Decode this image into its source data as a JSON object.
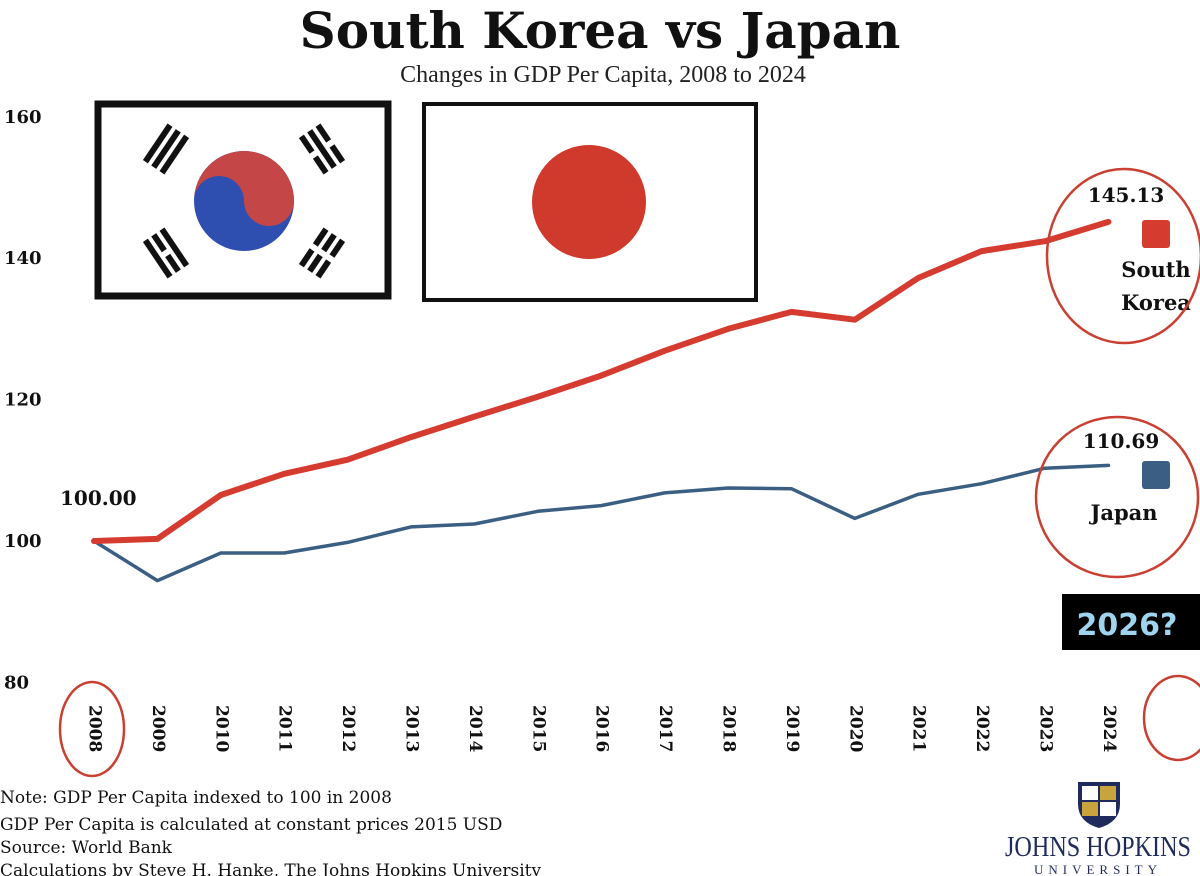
{
  "chart_data": {
    "type": "line",
    "title": "South Korea vs Japan",
    "subtitle": "Changes in GDP Per Capita, 2008 to 2024",
    "x": [
      "2008",
      "2009",
      "2010",
      "2011",
      "2012",
      "2013",
      "2014",
      "2015",
      "2016",
      "2017",
      "2018",
      "2019",
      "2020",
      "2021",
      "2022",
      "2023",
      "2024"
    ],
    "ylim": [
      80,
      160
    ],
    "yticks": [
      80,
      100,
      120,
      140,
      160
    ],
    "grid": false,
    "legend_placement": "right",
    "series": [
      {
        "name": "South Korea",
        "name_lines": [
          "South",
          "Korea"
        ],
        "color": "#d63b2f",
        "values": [
          100.0,
          100.3,
          106.5,
          109.5,
          111.5,
          114.7,
          117.6,
          120.4,
          123.4,
          126.9,
          130.0,
          132.4,
          131.3,
          137.2,
          141.0,
          142.4,
          145.13
        ],
        "end_label": "145.13"
      },
      {
        "name": "Japan",
        "name_lines": [
          "Japan"
        ],
        "color": "#3b5f82",
        "values": [
          100.0,
          94.4,
          98.3,
          98.3,
          99.8,
          102.0,
          102.4,
          104.2,
          105.0,
          106.8,
          107.5,
          107.4,
          103.2,
          106.6,
          108.1,
          110.3,
          110.69
        ],
        "end_label": "110.69"
      }
    ],
    "start_label": "100.00",
    "annotations": {
      "callout": "2026?"
    }
  },
  "notes": [
    "Note: GDP Per Capita indexed to 100 in 2008",
    "GDP Per Capita is calculated at constant prices 2015 USD",
    "Source: World Bank",
    "Calculations by Steve H. Hanke, The Johns Hopkins University"
  ],
  "logo": {
    "name": "JOHNS HOPKINS",
    "sub": "UNIVERSITY"
  },
  "flags": [
    {
      "country": "South Korea",
      "icon": "south-korea-flag-icon"
    },
    {
      "country": "Japan",
      "icon": "japan-flag-icon"
    }
  ],
  "colors": {
    "korea_red": "#d63b2f",
    "japan_blue": "#3b5f82",
    "circle_red": "#c94032",
    "callout_bg": "#000000",
    "callout_text": "#9fd4ee"
  }
}
